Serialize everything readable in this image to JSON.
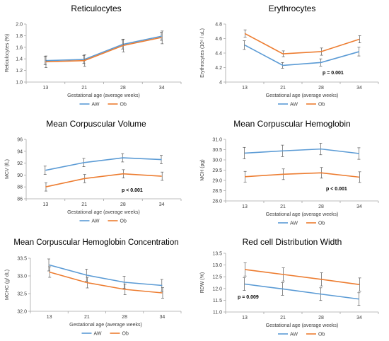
{
  "colors": {
    "AW": "#5b9bd5",
    "Ob": "#ed7d31",
    "axis": "#a6a6a6",
    "text": "#404040",
    "error": "#595959"
  },
  "chart_data": [
    {
      "type": "line",
      "title": "Reticulocytes",
      "xlabel": "Gestational age (average weeks)",
      "ylabel": "Reticulocytes (%)",
      "categories": [
        "13",
        "21",
        "28",
        "34"
      ],
      "ylim": [
        1.0,
        2.0
      ],
      "yticks": [
        "1.0",
        "1.2",
        "1.4",
        "1.6",
        "1.8",
        "2.0"
      ],
      "grid": false,
      "legend": "bottom",
      "annotation": "",
      "series": [
        {
          "name": "AW",
          "values": [
            1.37,
            1.39,
            1.65,
            1.79
          ],
          "errors": [
            0.07,
            0.07,
            0.08,
            0.07
          ]
        },
        {
          "name": "Ob",
          "values": [
            1.35,
            1.37,
            1.63,
            1.77
          ],
          "errors": [
            0.1,
            0.1,
            0.11,
            0.11
          ]
        }
      ]
    },
    {
      "type": "line",
      "title": "Erythrocytes",
      "xlabel": "Gestational age (average weeks)",
      "ylabel": "Erythrocytes (10⁶ / uL)",
      "categories": [
        "13",
        "21",
        "28",
        "34"
      ],
      "ylim": [
        4.0,
        4.8
      ],
      "yticks": [
        "4",
        "4.2",
        "4.4",
        "4.6",
        "4.8"
      ],
      "grid": false,
      "legend": "bottom",
      "annotation": "p = 0.001",
      "series": [
        {
          "name": "AW",
          "values": [
            4.51,
            4.23,
            4.27,
            4.42
          ],
          "errors": [
            0.06,
            0.04,
            0.05,
            0.06
          ]
        },
        {
          "name": "Ob",
          "values": [
            4.67,
            4.39,
            4.42,
            4.59
          ],
          "errors": [
            0.05,
            0.04,
            0.05,
            0.05
          ]
        }
      ]
    },
    {
      "type": "line",
      "title": "Mean Corpuscular Volume",
      "xlabel": "Gestational age (average weeks)",
      "ylabel": "MCV (fL)",
      "categories": [
        "13",
        "21",
        "28",
        "34"
      ],
      "ylim": [
        86,
        96
      ],
      "yticks": [
        "86",
        "88",
        "90",
        "92",
        "94",
        "96"
      ],
      "grid": false,
      "legend": "bottom",
      "annotation": "p < 0.001",
      "series": [
        {
          "name": "AW",
          "values": [
            90.8,
            92.1,
            92.9,
            92.6
          ],
          "errors": [
            0.7,
            0.7,
            0.7,
            0.7
          ]
        },
        {
          "name": "Ob",
          "values": [
            88.0,
            89.4,
            90.2,
            89.8
          ],
          "errors": [
            0.7,
            0.7,
            0.7,
            0.7
          ]
        }
      ]
    },
    {
      "type": "line",
      "title": "Mean Corpuscular Hemoglobin",
      "xlabel": "Gestational age (average weeks)",
      "ylabel": "MCH (pg)",
      "categories": [
        "13",
        "21",
        "28",
        "34"
      ],
      "ylim": [
        28.0,
        31.0
      ],
      "yticks": [
        "28.0",
        "28.5",
        "29.0",
        "29.5",
        "30.0",
        "30.5",
        "31.0"
      ],
      "grid": false,
      "legend": "bottom",
      "annotation": "p < 0.001",
      "series": [
        {
          "name": "AW",
          "values": [
            30.33,
            30.44,
            30.53,
            30.31
          ],
          "errors": [
            0.28,
            0.28,
            0.28,
            0.28
          ]
        },
        {
          "name": "Ob",
          "values": [
            29.18,
            29.3,
            29.37,
            29.16
          ],
          "errors": [
            0.26,
            0.26,
            0.26,
            0.26
          ]
        }
      ]
    },
    {
      "type": "line",
      "title": "Mean Corpuscular Hemoglobin Concentration",
      "xlabel": "Gestational age (average weeks)",
      "ylabel": "MCHC (g/ dL)",
      "categories": [
        "13",
        "21",
        "28",
        "34"
      ],
      "ylim": [
        32.0,
        33.5
      ],
      "yticks": [
        "32.0",
        "32.5",
        "33.0",
        "33.5"
      ],
      "grid": false,
      "legend": "bottom",
      "annotation": "",
      "series": [
        {
          "name": "AW",
          "values": [
            33.31,
            33.02,
            32.82,
            32.73
          ],
          "errors": [
            0.17,
            0.17,
            0.17,
            0.17
          ]
        },
        {
          "name": "Ob",
          "values": [
            33.11,
            32.81,
            32.62,
            32.52
          ],
          "errors": [
            0.15,
            0.15,
            0.15,
            0.15
          ]
        }
      ]
    },
    {
      "type": "line",
      "title": "Red cell Distribution Width",
      "xlabel": "Gestational age (average weeks)",
      "ylabel": "RDW (%)",
      "categories": [
        "13",
        "21",
        "28",
        "34"
      ],
      "ylim": [
        11.0,
        13.5
      ],
      "yticks": [
        "11.0",
        "11.5",
        "12.0",
        "12.5",
        "13.0",
        "13.5"
      ],
      "grid": false,
      "legend": "bottom",
      "annotation": "p = 0.009",
      "series": [
        {
          "name": "AW",
          "values": [
            12.19,
            11.98,
            11.76,
            11.55
          ],
          "errors": [
            0.27,
            0.27,
            0.27,
            0.27
          ]
        },
        {
          "name": "Ob",
          "values": [
            12.81,
            12.6,
            12.39,
            12.17
          ],
          "errors": [
            0.28,
            0.28,
            0.28,
            0.28
          ]
        }
      ]
    }
  ]
}
